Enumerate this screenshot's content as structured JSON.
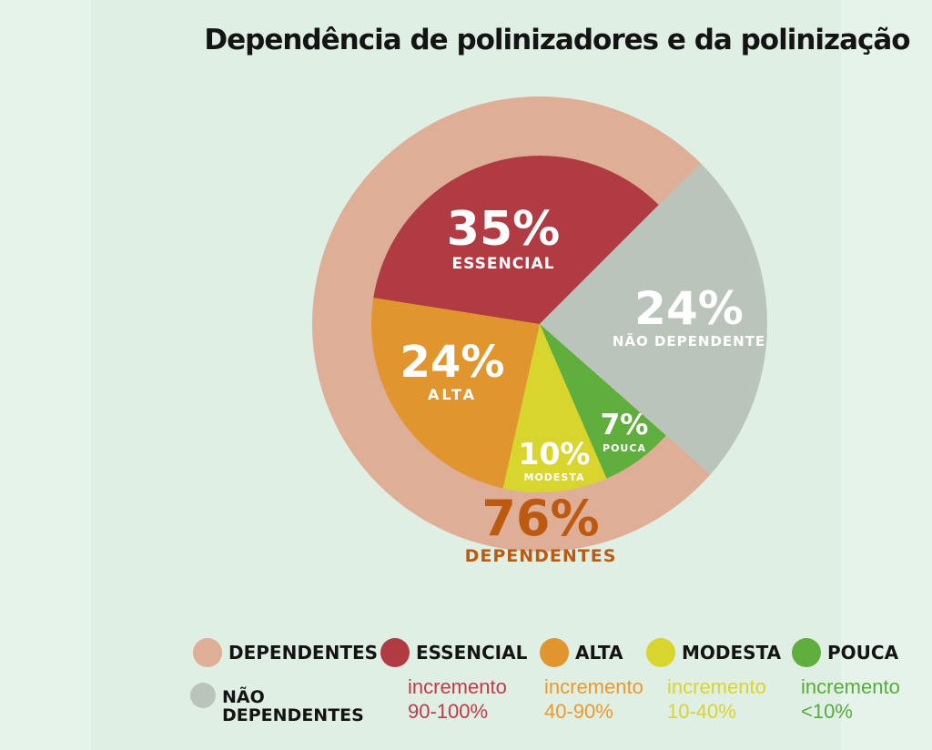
{
  "title": "Dependência de polinizadores e da polinização",
  "colors": {
    "background": "#e0efe4",
    "margin": "#e6f3ea",
    "title_text": "#141414"
  },
  "chart_data": {
    "type": "pie",
    "title": "Dependência de polinizadores e da polinização",
    "start_angle_deg": 45,
    "inner_radius_px": 185,
    "outer_radius_px": 250,
    "inner_slices": [
      {
        "label": "NÃO DEPENDENTE",
        "pct": 24,
        "color": "#bac4bb"
      },
      {
        "label": "POUCA",
        "pct": 7,
        "color": "#60ae3d"
      },
      {
        "label": "MODESTA",
        "pct": 10,
        "color": "#d9d52f"
      },
      {
        "label": "ALTA",
        "pct": 24,
        "color": "#e0952f"
      },
      {
        "label": "ESSENCIAL",
        "pct": 35,
        "color": "#b13b43"
      }
    ],
    "outer_ring": [
      {
        "label": "NÃO DEPENDENTE",
        "pct": 24,
        "color": "#bac4bb"
      },
      {
        "label": "DEPENDENTES",
        "pct": 76,
        "color": "#deae97"
      }
    ]
  },
  "annotations": {
    "essencial": {
      "value": "35%",
      "label": "ESSENCIAL",
      "color": "#ffffff"
    },
    "nao_dependente": {
      "value": "24%",
      "label": "NÃO DEPENDENTE",
      "color": "#ffffff"
    },
    "alta": {
      "value": "24%",
      "label": "ALTA",
      "color": "#ffffff"
    },
    "modesta": {
      "value": "10%",
      "label": "MODESTA",
      "color": "#ffffff"
    },
    "pouca": {
      "value": "7%",
      "label": "POUCA",
      "color": "#ffffff"
    },
    "dependentes": {
      "value": "76%",
      "label": "DEPENDENTES",
      "color": "#bd5a12"
    }
  },
  "legend": {
    "row1": [
      {
        "label": "DEPENDENTES",
        "swatch": "#deae97"
      },
      {
        "label": "ESSENCIAL",
        "swatch": "#b13b43"
      },
      {
        "label": "ALTA",
        "swatch": "#e0952f"
      },
      {
        "label": "MODESTA",
        "swatch": "#d9d52f"
      },
      {
        "label": "POUCA",
        "swatch": "#60ae3d"
      }
    ],
    "nao_dependentes": {
      "line1": "NÃO",
      "line2": "DEPENDENTES",
      "swatch": "#bac4bb"
    },
    "increments": [
      {
        "line1": "incremento",
        "line2": "90-100%",
        "color": "#bf3b49"
      },
      {
        "line1": "incremento",
        "line2": "40-90%",
        "color": "#e9992f"
      },
      {
        "line1": "incremento",
        "line2": "10-40%",
        "color": "#d9d42f"
      },
      {
        "line1": "incremento",
        "line2": "<10%",
        "color": "#57ac3c"
      }
    ]
  }
}
